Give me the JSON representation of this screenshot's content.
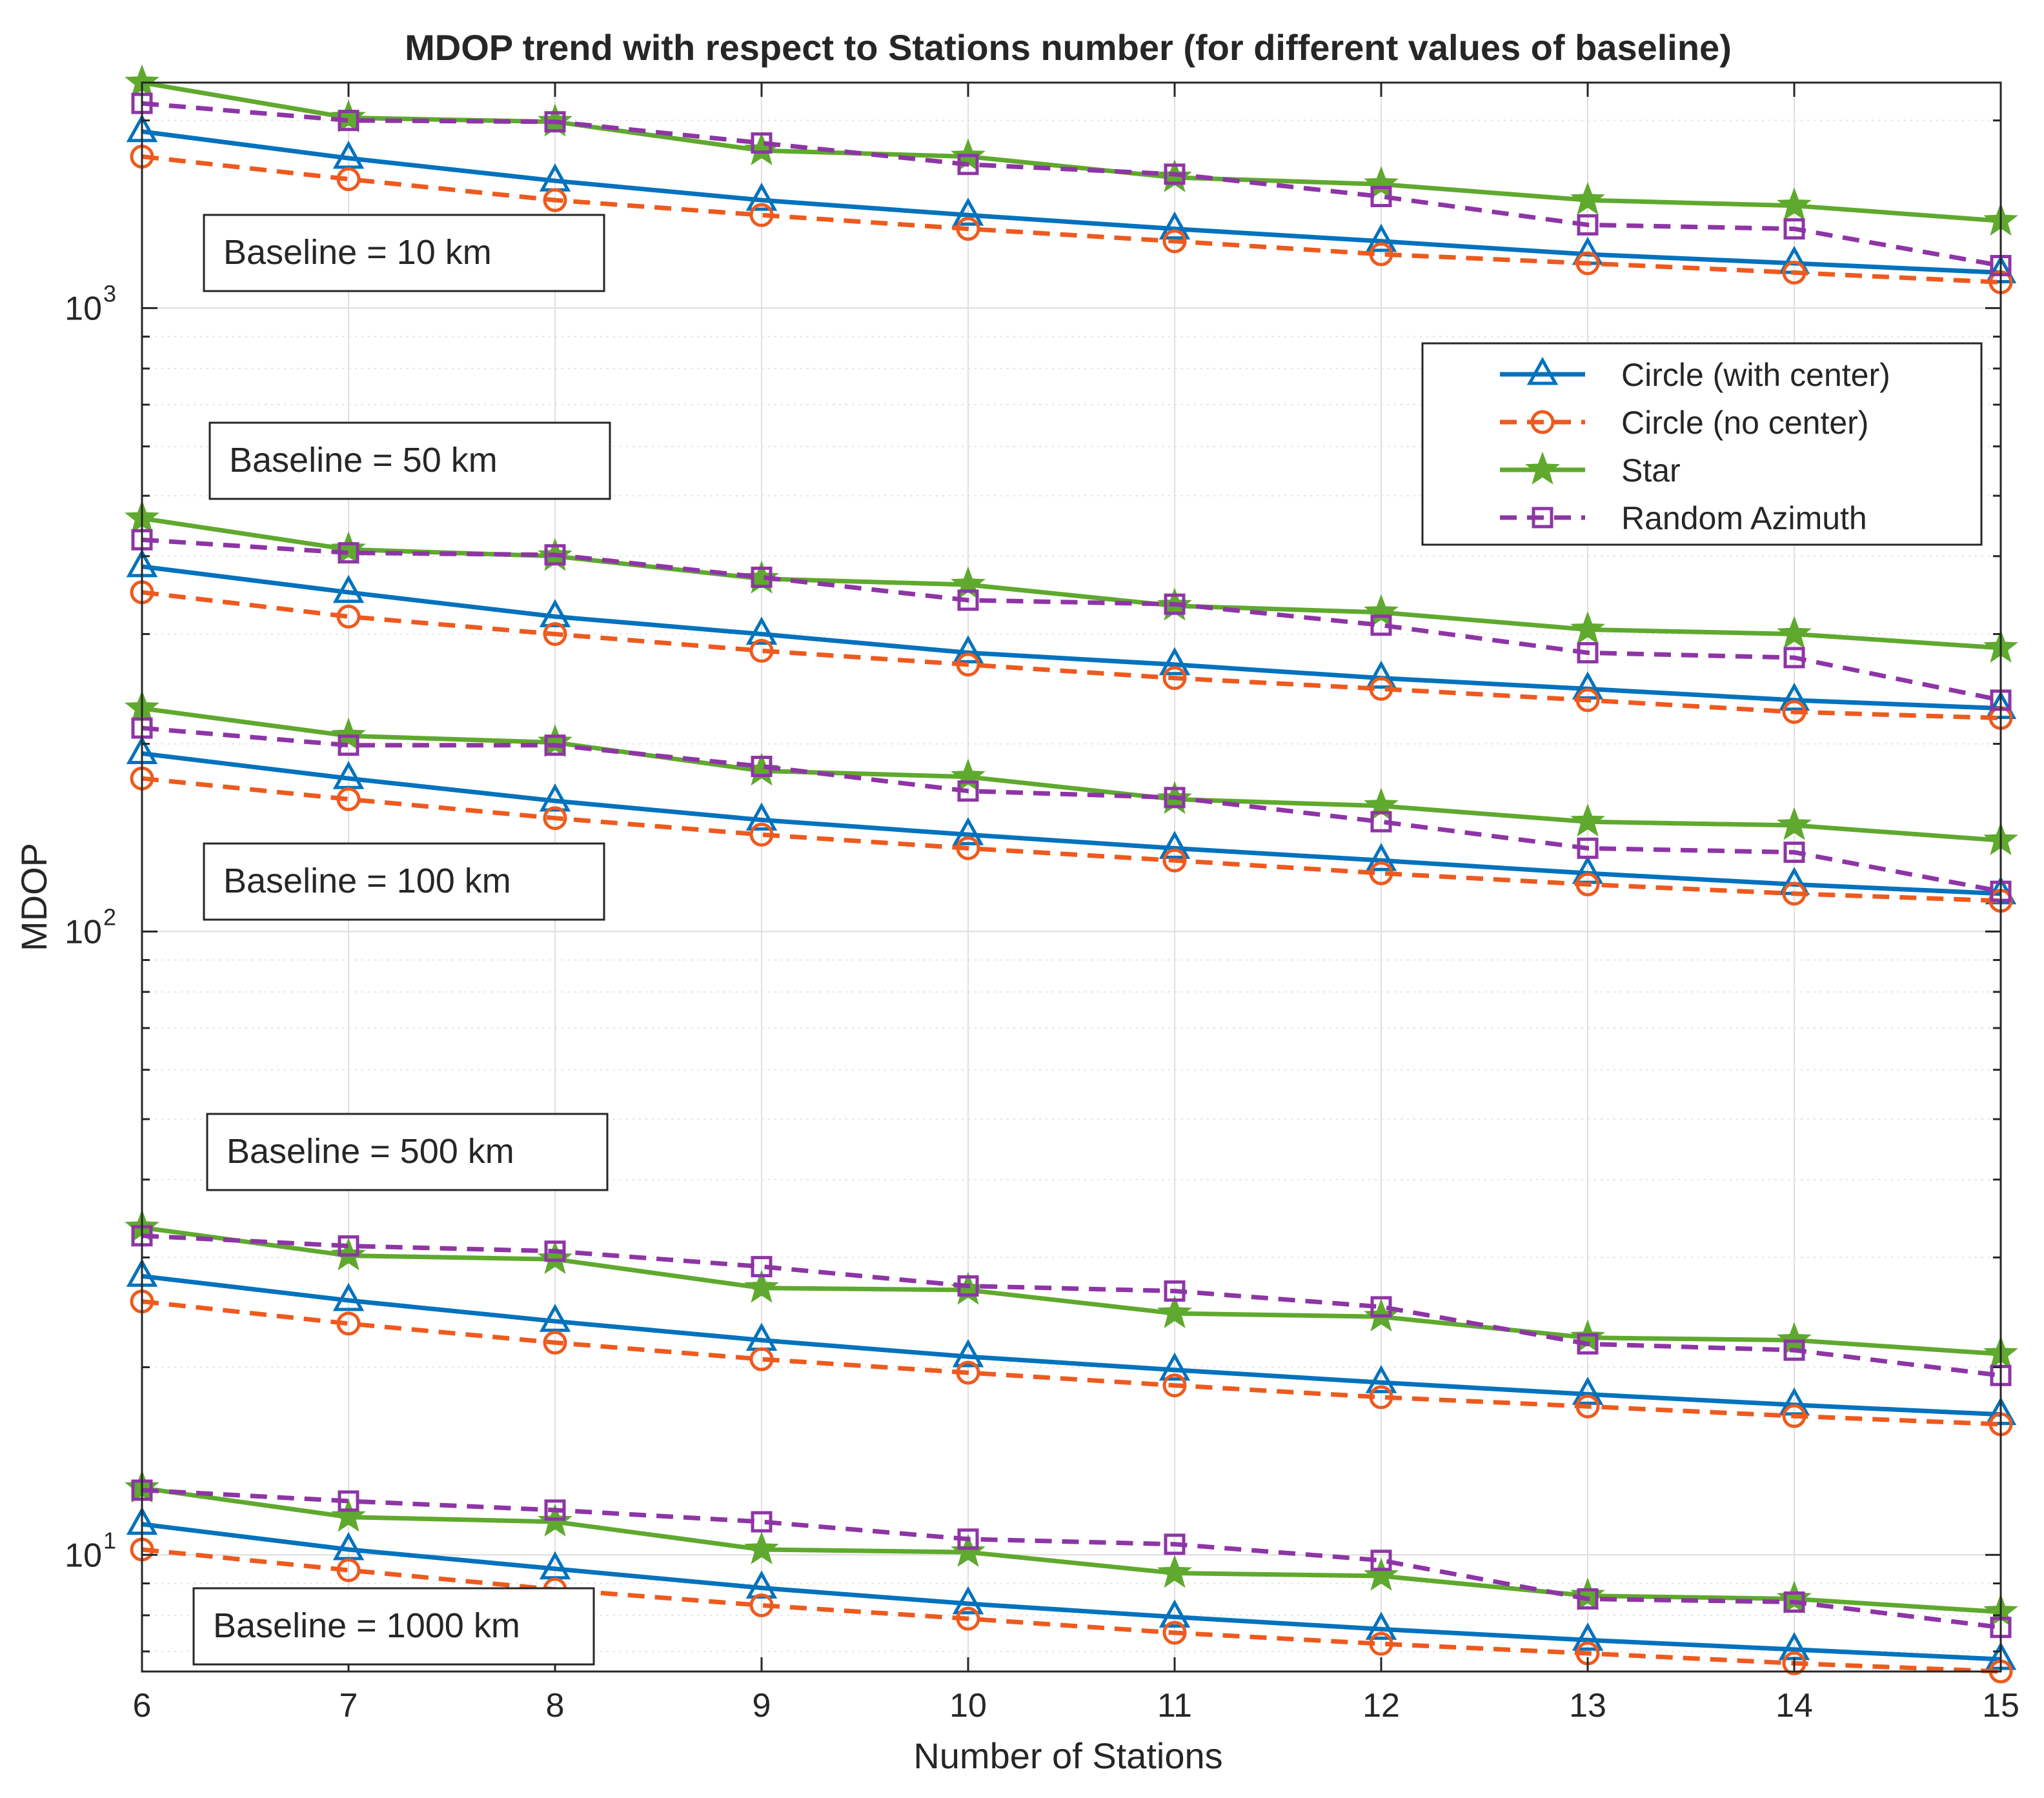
{
  "chart_data": {
    "type": "line",
    "title": "MDOP trend with respect to Stations number (for different values of baseline)",
    "xlabel": "Number of Stations",
    "ylabel": "MDOP",
    "xlim": [
      6,
      15
    ],
    "ylim": [
      6.5,
      2300
    ],
    "yscale": "log",
    "grid": true,
    "legend_position": "top-right",
    "x": [
      6,
      7,
      8,
      9,
      10,
      11,
      12,
      13,
      14,
      15
    ],
    "x_tick_labels": [
      "6",
      "7",
      "8",
      "9",
      "10",
      "11",
      "12",
      "13",
      "14",
      "15"
    ],
    "y_tick_labels": [
      {
        "value": 10,
        "base": "10",
        "exp": "1"
      },
      {
        "value": 100,
        "base": "10",
        "exp": "2"
      },
      {
        "value": 1000,
        "base": "10",
        "exp": "3"
      }
    ],
    "legend": [
      {
        "name": "Circle (with center)",
        "color": "#0072BD",
        "dash": "solid",
        "marker": "triangle"
      },
      {
        "name": "Circle (no center)",
        "color": "#EE5A1E",
        "dash": "dashed",
        "marker": "circle"
      },
      {
        "name": "Star",
        "color": "#5FA92E",
        "dash": "solid",
        "marker": "star"
      },
      {
        "name": "Random Azimuth",
        "color": "#8E35A6",
        "dash": "dashed",
        "marker": "square"
      }
    ],
    "baseline_labels": [
      {
        "text": "Baseline = 10 km",
        "series_group": 0
      },
      {
        "text": "Baseline = 50 km",
        "series_group": 1
      },
      {
        "text": "Baseline = 100 km",
        "series_group": 2
      },
      {
        "text": "Baseline = 500 km",
        "series_group": 3
      },
      {
        "text": "Baseline = 1000 km",
        "series_group": 4
      }
    ],
    "series": [
      {
        "name": "Circle (with center)",
        "baseline": "10 km",
        "values": [
          1920,
          1740,
          1600,
          1490,
          1410,
          1340,
          1280,
          1220,
          1180,
          1140
        ]
      },
      {
        "name": "Circle (no center)",
        "baseline": "10 km",
        "values": [
          1750,
          1610,
          1490,
          1410,
          1340,
          1280,
          1220,
          1180,
          1140,
          1100
        ]
      },
      {
        "name": "Star",
        "baseline": "10 km",
        "values": [
          2300,
          2020,
          1990,
          1790,
          1750,
          1620,
          1580,
          1490,
          1460,
          1380
        ]
      },
      {
        "name": "Random Azimuth",
        "baseline": "10 km",
        "values": [
          2130,
          2000,
          1990,
          1840,
          1700,
          1640,
          1510,
          1360,
          1340,
          1170
        ]
      },
      {
        "name": "Circle (with center)",
        "baseline": "50 km",
        "values": [
          385,
          350,
          320,
          300,
          280,
          268,
          255,
          245,
          235,
          228
        ]
      },
      {
        "name": "Circle (no center)",
        "baseline": "50 km",
        "values": [
          350,
          320,
          300,
          282,
          268,
          255,
          245,
          235,
          225,
          220
        ]
      },
      {
        "name": "Star",
        "baseline": "50 km",
        "values": [
          460,
          410,
          400,
          368,
          360,
          333,
          325,
          305,
          300,
          285
        ]
      },
      {
        "name": "Random Azimuth",
        "baseline": "50 km",
        "values": [
          425,
          405,
          402,
          370,
          340,
          335,
          310,
          280,
          275,
          235
        ]
      },
      {
        "name": "Circle (with center)",
        "baseline": "100 km",
        "values": [
          193,
          176,
          162,
          151,
          143,
          136,
          130,
          124,
          119,
          115
        ]
      },
      {
        "name": "Circle (no center)",
        "baseline": "100 km",
        "values": [
          176,
          163,
          152,
          143,
          136,
          130,
          124,
          119,
          115,
          112
        ]
      },
      {
        "name": "Star",
        "baseline": "100 km",
        "values": [
          228,
          206,
          201,
          181,
          177,
          163,
          159,
          150,
          148,
          140
        ]
      },
      {
        "name": "Random Azimuth",
        "baseline": "100 km",
        "values": [
          212,
          199,
          199,
          184,
          168,
          164,
          150,
          136,
          134,
          116
        ]
      },
      {
        "name": "Circle (with center)",
        "baseline": "500 km",
        "values": [
          28.0,
          25.6,
          23.7,
          22.1,
          20.8,
          19.8,
          18.9,
          18.1,
          17.4,
          16.8
        ]
      },
      {
        "name": "Circle (no center)",
        "baseline": "500 km",
        "values": [
          25.5,
          23.5,
          21.9,
          20.6,
          19.6,
          18.7,
          17.9,
          17.3,
          16.7,
          16.2
        ]
      },
      {
        "name": "Star",
        "baseline": "500 km",
        "values": [
          33.5,
          30.2,
          29.8,
          26.8,
          26.6,
          24.4,
          24.1,
          22.3,
          22.1,
          21.0
        ]
      },
      {
        "name": "Random Azimuth",
        "baseline": "500 km",
        "values": [
          32.5,
          31.3,
          30.7,
          29.0,
          27.0,
          26.5,
          25.0,
          21.8,
          21.3,
          19.4
        ]
      },
      {
        "name": "Circle (with center)",
        "baseline": "1000 km",
        "values": [
          11.2,
          10.2,
          9.5,
          8.85,
          8.35,
          7.95,
          7.6,
          7.3,
          7.05,
          6.8
        ]
      },
      {
        "name": "Circle (no center)",
        "baseline": "1000 km",
        "values": [
          10.2,
          9.45,
          8.8,
          8.3,
          7.9,
          7.5,
          7.2,
          6.95,
          6.7,
          6.5
        ]
      },
      {
        "name": "Star",
        "baseline": "1000 km",
        "values": [
          12.8,
          11.5,
          11.3,
          10.2,
          10.1,
          9.35,
          9.25,
          8.6,
          8.5,
          8.1
        ]
      },
      {
        "name": "Random Azimuth",
        "baseline": "1000 km",
        "values": [
          12.7,
          12.2,
          11.8,
          11.3,
          10.6,
          10.4,
          9.8,
          8.5,
          8.4,
          7.65
        ]
      }
    ]
  }
}
